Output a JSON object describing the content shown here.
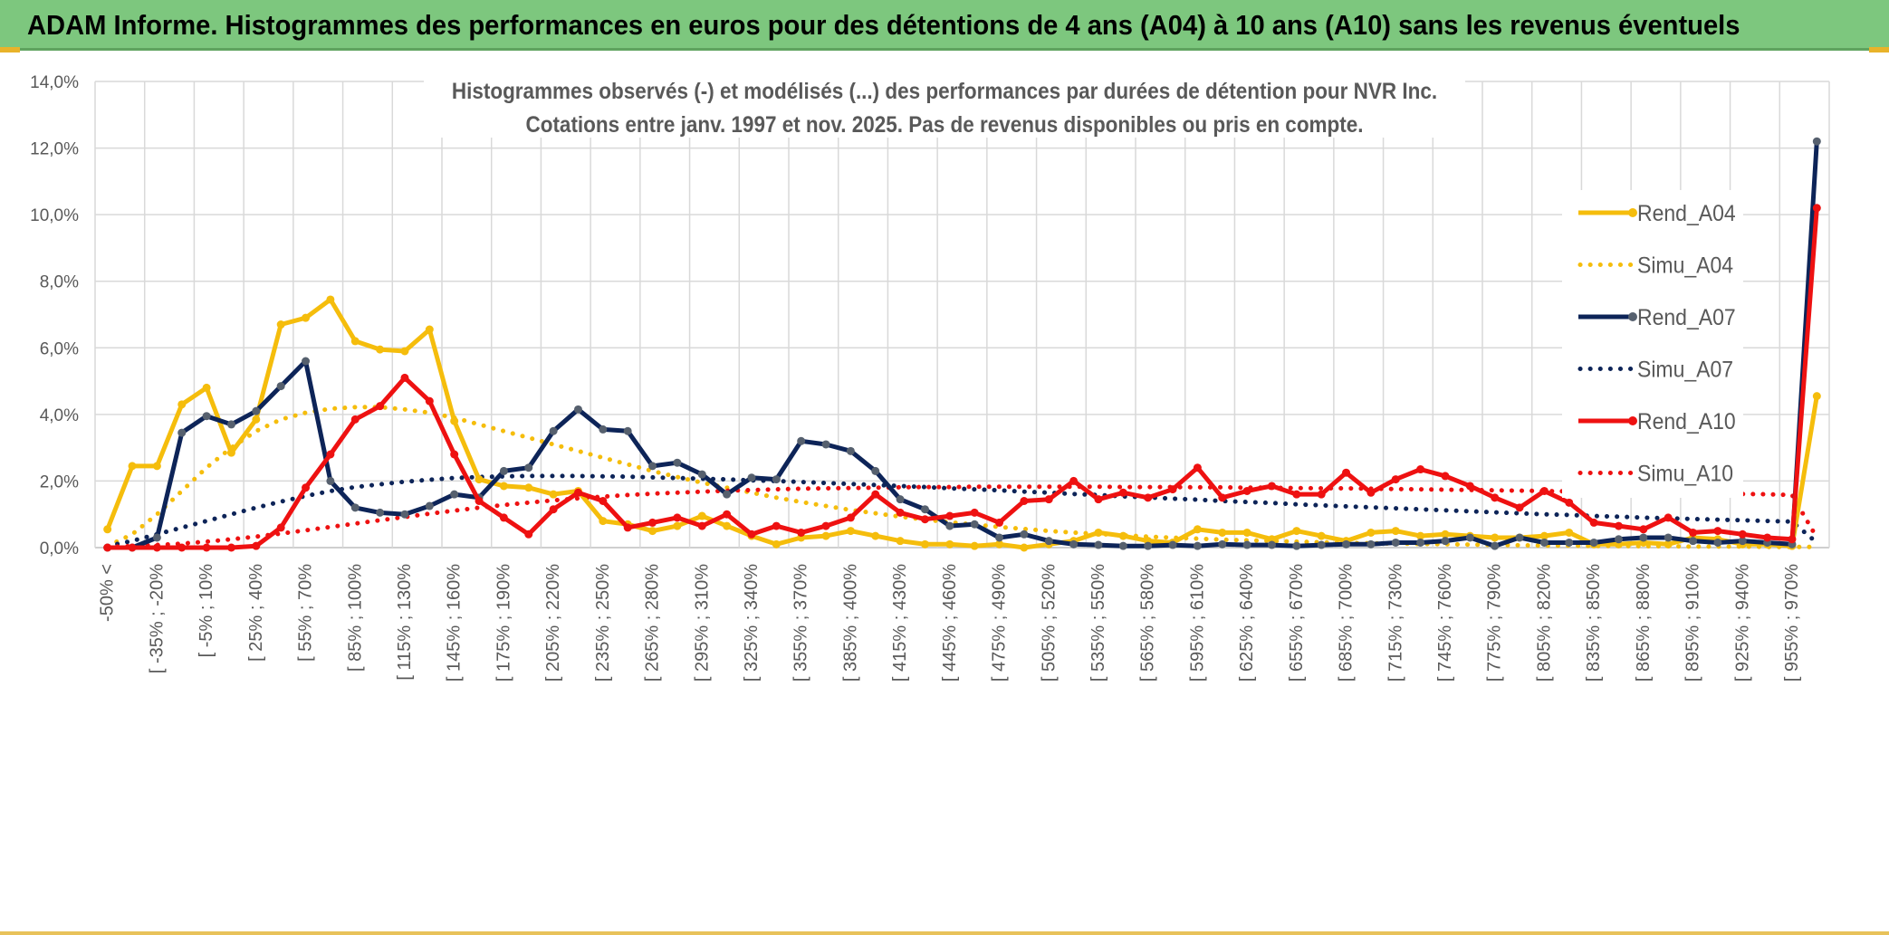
{
  "banner": {
    "title": "ADAM Informe. Histogrammes des performances en euros pour des détentions de 4 ans (A04) à 10 ans (A10) sans les revenus éventuels"
  },
  "colors": {
    "A04": "#f5bd0c",
    "A07": "#0d2458",
    "A10": "#ee1111",
    "marker07": "#56606e",
    "grid": "#d9d9d9",
    "axis_text": "#595959"
  },
  "chart_data": {
    "type": "line",
    "title_line1": "Histogrammes observés (-) et modélisés (...) des performances par durées de détention pour NVR Inc.",
    "title_line2": "Cotations entre janv. 1997 et nov. 2025. Pas de revenus disponibles ou pris en compte.",
    "ylim": [
      0,
      14
    ],
    "yticks": [
      "0,0%",
      "2,0%",
      "4,0%",
      "6,0%",
      "8,0%",
      "10,0%",
      "12,0%",
      "14,0%"
    ],
    "xtick_labels": [
      "-50% <",
      "[ -35% ; -20%",
      "[ -5% ; 10%",
      "[ 25% ; 40%",
      "[ 55% ; 70%",
      "[ 85% ; 100%",
      "[ 115% ; 130%",
      "[ 145% ; 160%",
      "[ 175% ; 190%",
      "[ 205% ; 220%",
      "[ 235% ; 250%",
      "[ 265% ; 280%",
      "[ 295% ; 310%",
      "[ 325% ; 340%",
      "[ 355% ; 370%",
      "[ 385% ; 400%",
      "[ 415% ; 430%",
      "[ 445% ; 460%",
      "[ 475% ; 490%",
      "[ 505% ; 520%",
      "[ 535% ; 550%",
      "[ 565% ; 580%",
      "[ 595% ; 610%",
      "[ 625% ; 640%",
      "[ 655% ; 670%",
      "[ 685% ; 700%",
      "[ 715% ; 730%",
      "[ 745% ; 760%",
      "[ 775% ; 790%",
      "[ 805% ; 820%",
      "[ 835% ; 850%",
      "[ 865% ; 880%",
      "[ 895% ; 910%",
      "[ 925% ; 940%",
      "[ 955% ; 970%"
    ],
    "legend": [
      {
        "key": "Rend_A04",
        "label": "Rend_A04",
        "style": "solid"
      },
      {
        "key": "Simu_A04",
        "label": "Simu_A04",
        "style": "dotted"
      },
      {
        "key": "Rend_A07",
        "label": "Rend_A07",
        "style": "solid"
      },
      {
        "key": "Simu_A07",
        "label": "Simu_A07",
        "style": "dotted"
      },
      {
        "key": "Rend_A10",
        "label": "Rend_A10",
        "style": "solid"
      },
      {
        "key": "Simu_A10",
        "label": "Simu_A10",
        "style": "dotted"
      }
    ],
    "series": [
      {
        "name": "Rend_A04",
        "color_key": "A04",
        "style": "solid",
        "values": [
          0.55,
          2.45,
          2.45,
          4.3,
          4.8,
          2.85,
          3.85,
          6.7,
          6.9,
          7.45,
          6.2,
          5.95,
          5.9,
          6.55,
          3.8,
          2.05,
          1.85,
          1.8,
          1.6,
          1.7,
          0.8,
          0.7,
          0.5,
          0.65,
          0.95,
          0.65,
          0.35,
          0.1,
          0.3,
          0.35,
          0.5,
          0.35,
          0.2,
          0.1,
          0.1,
          0.05,
          0.1,
          0.0,
          0.1,
          0.2,
          0.45,
          0.35,
          0.2,
          0.15,
          0.55,
          0.45,
          0.45,
          0.25,
          0.5,
          0.35,
          0.2,
          0.45,
          0.5,
          0.35,
          0.4,
          0.35,
          0.3,
          0.3,
          0.35,
          0.45,
          0.1,
          0.1,
          0.15,
          0.1,
          0.3,
          0.25,
          0.1,
          0.1,
          0.05,
          4.55
        ]
      },
      {
        "name": "Simu_A04",
        "color_key": "A04",
        "style": "dotted",
        "values": [
          0.05,
          0.4,
          1.0,
          1.7,
          2.4,
          3.0,
          3.5,
          3.85,
          4.05,
          4.17,
          4.22,
          4.22,
          4.15,
          4.05,
          3.9,
          3.7,
          3.5,
          3.3,
          3.1,
          2.9,
          2.7,
          2.5,
          2.3,
          2.12,
          1.95,
          1.8,
          1.65,
          1.5,
          1.37,
          1.25,
          1.13,
          1.03,
          0.93,
          0.84,
          0.76,
          0.69,
          0.62,
          0.56,
          0.5,
          0.45,
          0.41,
          0.37,
          0.33,
          0.3,
          0.27,
          0.24,
          0.22,
          0.2,
          0.18,
          0.16,
          0.14,
          0.13,
          0.12,
          0.11,
          0.1,
          0.09,
          0.08,
          0.07,
          0.06,
          0.06,
          0.05,
          0.05,
          0.04,
          0.04,
          0.03,
          0.03,
          0.03,
          0.02,
          0.02,
          0.02
        ]
      },
      {
        "name": "Rend_A07",
        "color_key": "A07",
        "style": "solid",
        "values": [
          0.0,
          0.0,
          0.3,
          3.45,
          3.95,
          3.7,
          4.1,
          4.85,
          5.6,
          2.0,
          1.2,
          1.05,
          1.0,
          1.25,
          1.6,
          1.5,
          2.3,
          2.4,
          3.5,
          4.15,
          3.55,
          3.5,
          2.45,
          2.55,
          2.2,
          1.6,
          2.1,
          2.05,
          3.2,
          3.1,
          2.9,
          2.3,
          1.45,
          1.15,
          0.65,
          0.7,
          0.3,
          0.4,
          0.2,
          0.1,
          0.08,
          0.05,
          0.05,
          0.08,
          0.05,
          0.1,
          0.08,
          0.08,
          0.05,
          0.08,
          0.1,
          0.1,
          0.15,
          0.15,
          0.2,
          0.3,
          0.05,
          0.3,
          0.15,
          0.15,
          0.15,
          0.25,
          0.3,
          0.3,
          0.2,
          0.15,
          0.2,
          0.15,
          0.1,
          12.2
        ]
      },
      {
        "name": "Simu_A07",
        "color_key": "A07",
        "style": "dotted",
        "values": [
          0.05,
          0.2,
          0.4,
          0.6,
          0.8,
          1.0,
          1.2,
          1.38,
          1.55,
          1.7,
          1.82,
          1.9,
          1.98,
          2.04,
          2.09,
          2.12,
          2.14,
          2.15,
          2.15,
          2.15,
          2.14,
          2.13,
          2.11,
          2.09,
          2.07,
          2.05,
          2.02,
          2.0,
          1.97,
          1.94,
          1.91,
          1.88,
          1.85,
          1.82,
          1.78,
          1.75,
          1.72,
          1.68,
          1.65,
          1.61,
          1.58,
          1.54,
          1.51,
          1.47,
          1.44,
          1.4,
          1.37,
          1.34,
          1.3,
          1.27,
          1.24,
          1.21,
          1.18,
          1.15,
          1.12,
          1.09,
          1.06,
          1.03,
          1.0,
          0.98,
          0.95,
          0.93,
          0.9,
          0.88,
          0.86,
          0.84,
          0.82,
          0.8,
          0.78,
          0.15
        ]
      },
      {
        "name": "Rend_A10",
        "color_key": "A10",
        "style": "solid",
        "values": [
          0.0,
          0.0,
          0.0,
          0.0,
          0.0,
          0.0,
          0.05,
          0.6,
          1.8,
          2.8,
          3.85,
          4.25,
          5.1,
          4.4,
          2.8,
          1.4,
          0.9,
          0.4,
          1.15,
          1.65,
          1.4,
          0.6,
          0.75,
          0.9,
          0.65,
          1.0,
          0.4,
          0.65,
          0.45,
          0.65,
          0.9,
          1.6,
          1.05,
          0.85,
          0.95,
          1.05,
          0.75,
          1.4,
          1.45,
          2.0,
          1.45,
          1.65,
          1.5,
          1.75,
          2.4,
          1.5,
          1.7,
          1.85,
          1.6,
          1.6,
          2.25,
          1.65,
          2.05,
          2.35,
          2.15,
          1.85,
          1.5,
          1.2,
          1.7,
          1.35,
          0.75,
          0.65,
          0.55,
          0.9,
          0.45,
          0.5,
          0.4,
          0.3,
          0.25,
          10.2
        ]
      },
      {
        "name": "Simu_A10",
        "color_key": "A10",
        "style": "dotted",
        "values": [
          0.02,
          0.05,
          0.08,
          0.12,
          0.18,
          0.25,
          0.33,
          0.42,
          0.52,
          0.62,
          0.72,
          0.82,
          0.92,
          1.02,
          1.11,
          1.2,
          1.28,
          1.35,
          1.42,
          1.48,
          1.53,
          1.58,
          1.62,
          1.65,
          1.68,
          1.71,
          1.73,
          1.75,
          1.77,
          1.78,
          1.79,
          1.8,
          1.81,
          1.82,
          1.82,
          1.83,
          1.83,
          1.83,
          1.83,
          1.83,
          1.83,
          1.82,
          1.82,
          1.82,
          1.81,
          1.81,
          1.8,
          1.8,
          1.79,
          1.78,
          1.78,
          1.77,
          1.76,
          1.75,
          1.74,
          1.73,
          1.72,
          1.71,
          1.7,
          1.69,
          1.68,
          1.67,
          1.66,
          1.65,
          1.63,
          1.62,
          1.61,
          1.6,
          1.58,
          0.3
        ]
      }
    ]
  }
}
